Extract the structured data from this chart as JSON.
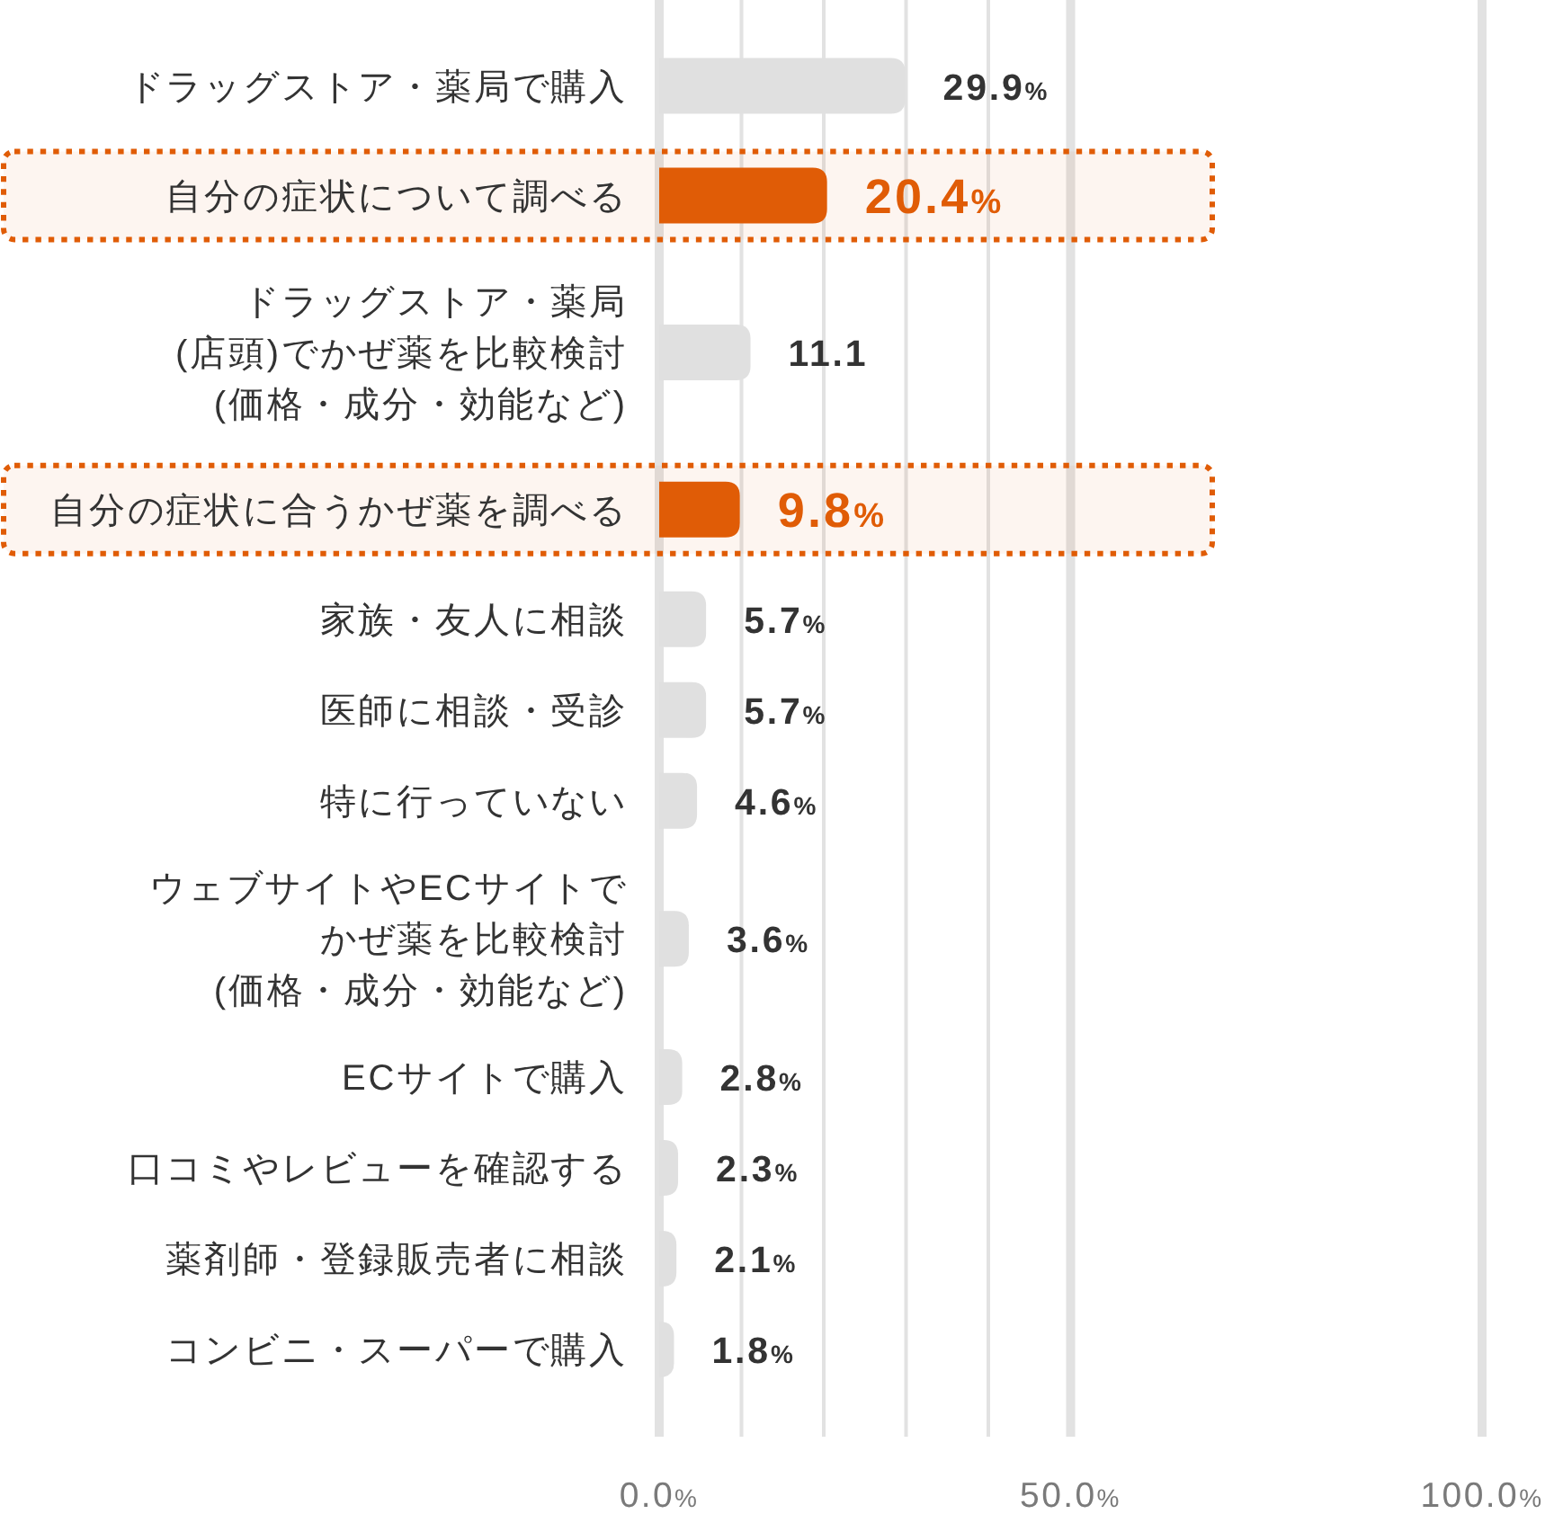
{
  "chart_data": {
    "type": "bar",
    "orientation": "horizontal",
    "categories": [
      "ドラッグストア・薬局で購入",
      "自分の症状について調べる",
      "ドラッグストア・薬局(店頭)でかぜ薬を比較検討(価格・成分・効能など)",
      "自分の症状に合うかぜ薬を調べる",
      "家族・友人に相談",
      "医師に相談・受診",
      "特に行っていない",
      "ウェブサイトやECサイトでかぜ薬を比較検討(価格・成分・効能など)",
      "ECサイトで購入",
      "口コミやレビューを確認する",
      "薬剤師・登録販売者に相談",
      "コンビニ・スーパーで購入"
    ],
    "values": [
      29.9,
      20.4,
      11.1,
      9.8,
      5.7,
      5.7,
      4.6,
      3.6,
      2.8,
      2.3,
      2.1,
      1.8
    ],
    "colors": [
      "#e0e0e0",
      "#e05c06",
      "#e0e0e0",
      "#e05c06",
      "#e0e0e0",
      "#e0e0e0",
      "#e0e0e0",
      "#e0e0e0",
      "#e0e0e0",
      "#e0e0e0",
      "#e0e0e0",
      "#e0e0e0"
    ],
    "value_labels": [
      "29.9%",
      "20.4%",
      "11.1",
      "9.8%",
      "5.7%",
      "5.7%",
      "4.6%",
      "3.6%",
      "2.8%",
      "2.3%",
      "2.1%",
      "1.8%"
    ],
    "xlim": [
      0,
      100
    ],
    "xticks": [
      {
        "value": 0,
        "label": "0.0%"
      },
      {
        "value": 10,
        "label": null
      },
      {
        "value": 20,
        "label": null
      },
      {
        "value": 30,
        "label": null
      },
      {
        "value": 40,
        "label": null
      },
      {
        "value": 50,
        "label": "50.0%"
      },
      {
        "value": 100,
        "label": "100.0%"
      }
    ],
    "grid": "x",
    "ref_lines": [
      {
        "axis": "x",
        "value": 50,
        "color": "#e2e2e2"
      }
    ],
    "bands": [
      {
        "axis": "y",
        "from": "自分の症状について調べる",
        "to": "自分の症状について調べる",
        "color": "#e05c06"
      },
      {
        "axis": "y",
        "from": "自分の症状に合うかぜ薬を調べる",
        "to": "自分の症状に合うかぜ薬を調べる",
        "color": "#e05c06"
      }
    ]
  }
}
